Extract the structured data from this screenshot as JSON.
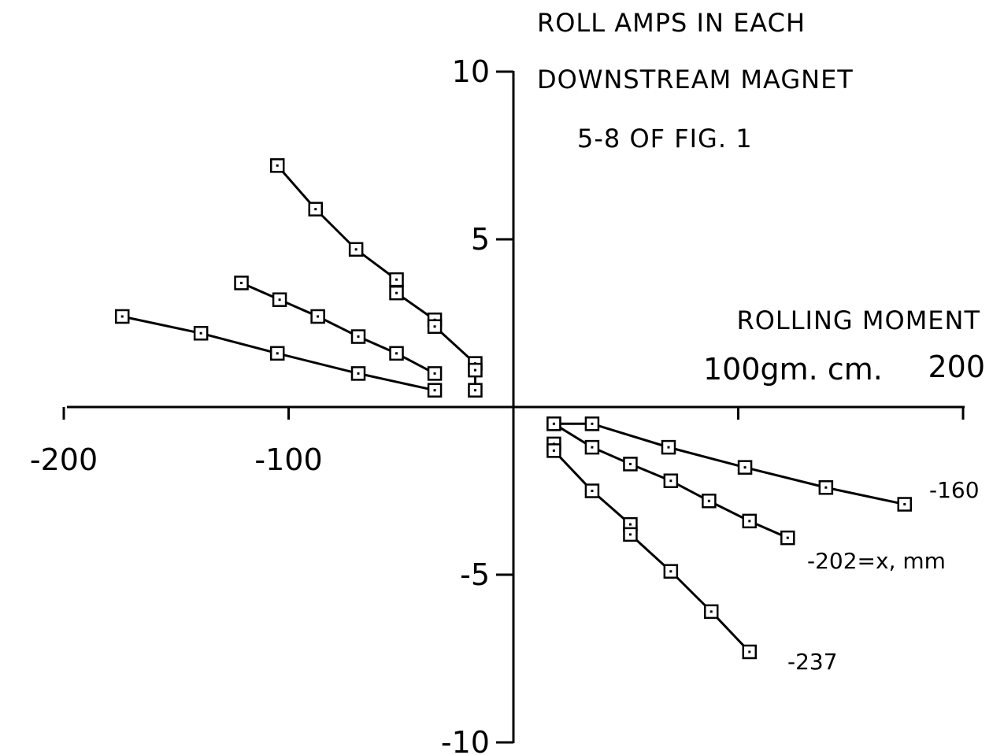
{
  "chart_data": {
    "type": "line",
    "title_lines": [
      "ROLL AMPS IN EACH",
      "DOWNSTREAM MAGNET",
      "5-8 OF FIG. 1"
    ],
    "xlabel_lines": [
      "ROLLING MOMENT",
      "100gm. cm."
    ],
    "xlim": [
      -200,
      200
    ],
    "ylim": [
      -10,
      10
    ],
    "x_ticks": [
      -200,
      -100,
      100,
      200
    ],
    "x_tick_labels": [
      "-200",
      "-100",
      "",
      "200"
    ],
    "y_ticks": [
      10,
      5,
      -5,
      -10
    ],
    "y_tick_labels": [
      "10",
      "5",
      "-5",
      "-10"
    ],
    "series": [
      {
        "name": "-160",
        "points": [
          [
            -174,
            2.7
          ],
          [
            -139,
            2.2
          ],
          [
            -105,
            1.6
          ],
          [
            -69,
            1.0
          ],
          [
            -35,
            0.5
          ]
        ]
      },
      {
        "name": "-202=x, mm",
        "points": [
          [
            -121,
            3.7
          ],
          [
            -104,
            3.2
          ],
          [
            -87,
            2.7
          ],
          [
            -69,
            2.1
          ],
          [
            -52,
            1.6
          ],
          [
            -35,
            1.0
          ]
        ]
      },
      {
        "name": "-237",
        "points": [
          [
            -105,
            7.2
          ],
          [
            -88,
            5.9
          ],
          [
            -70,
            4.7
          ],
          [
            -52,
            3.8
          ],
          [
            -52,
            3.4
          ],
          [
            -35,
            2.6
          ],
          [
            -35,
            2.4
          ],
          [
            -17,
            1.3
          ],
          [
            -17,
            1.1
          ],
          [
            -17,
            0.5
          ]
        ]
      },
      {
        "name": "-160",
        "points": [
          [
            18,
            -0.5
          ],
          [
            35,
            -0.5
          ],
          [
            69,
            -1.2
          ],
          [
            103,
            -1.8
          ],
          [
            139,
            -2.4
          ],
          [
            174,
            -2.9
          ]
        ]
      },
      {
        "name": "-202=x, mm",
        "points": [
          [
            18,
            -0.5
          ],
          [
            35,
            -1.2
          ],
          [
            52,
            -1.7
          ],
          [
            70,
            -2.2
          ],
          [
            87,
            -2.8
          ],
          [
            105,
            -3.4
          ],
          [
            122,
            -3.9
          ]
        ]
      },
      {
        "name": "-237",
        "points": [
          [
            18,
            -1.1
          ],
          [
            18,
            -1.3
          ],
          [
            35,
            -2.5
          ],
          [
            52,
            -3.5
          ],
          [
            52,
            -3.8
          ],
          [
            70,
            -4.9
          ],
          [
            88,
            -6.1
          ],
          [
            105,
            -7.3
          ]
        ]
      }
    ]
  }
}
